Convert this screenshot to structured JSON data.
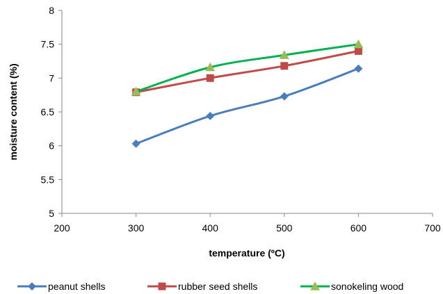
{
  "chart_data": {
    "type": "line",
    "xlabel": "temperature (ºC)",
    "ylabel": "moisture  content (%)",
    "xlim": [
      200,
      700
    ],
    "ylim": [
      5,
      8
    ],
    "x_ticks": [
      "200",
      "300",
      "400",
      "500",
      "600",
      "700"
    ],
    "y_ticks": [
      "5",
      "5.5",
      "6",
      "6.5",
      "7",
      "7.5",
      "8"
    ],
    "x": [
      300,
      400,
      500,
      600
    ],
    "grid": false,
    "legend_position": "bottom",
    "series": [
      {
        "name": "peanut shells",
        "values": [
          6.03,
          6.44,
          6.73,
          7.14
        ],
        "color": "#4A7EBB",
        "marker": "diamond"
      },
      {
        "name": "rubber  seed shells",
        "values": [
          6.79,
          7.0,
          7.18,
          7.4
        ],
        "color": "#BE4B48",
        "marker": "square"
      },
      {
        "name": "sonokeling wood",
        "values": [
          6.8,
          7.16,
          7.34,
          7.5
        ],
        "color": "#00B050",
        "marker_color": "#9BBB59",
        "marker": "triangle"
      }
    ]
  }
}
